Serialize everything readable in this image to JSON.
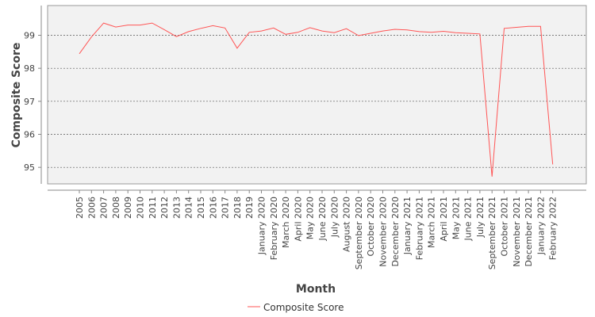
{
  "chart_data": {
    "type": "line",
    "title": "",
    "xlabel": "Month",
    "ylabel": "Composite Score",
    "ylim": [
      94.5,
      99.9
    ],
    "yticks": [
      95,
      96,
      97,
      98,
      99
    ],
    "grid": "horizontal dotted",
    "legend_position": "bottom-center",
    "categories": [
      "2005",
      "2006",
      "2007",
      "2008",
      "2009",
      "2010",
      "2011",
      "2012",
      "2013",
      "2014",
      "2015",
      "2016",
      "2017",
      "2018",
      "2019",
      "January 2020",
      "February 2020",
      "March 2020",
      "April 2020",
      "May 2020",
      "June 2020",
      "July 2020",
      "August 2020",
      "September 2020",
      "October 2020",
      "November 2020",
      "December 2020",
      "January 2021",
      "February 2021",
      "March 2021",
      "April 2021",
      "May 2021",
      "June 2021",
      "July 2021",
      "September 2021",
      "October 2021",
      "November 2021",
      "December 2021",
      "January 2022",
      "February 2022"
    ],
    "series": [
      {
        "name": "Composite Score",
        "color": "#ff5555",
        "values": [
          98.44,
          98.95,
          99.37,
          99.25,
          99.31,
          99.31,
          99.37,
          99.17,
          98.96,
          99.11,
          99.21,
          99.29,
          99.22,
          98.61,
          99.09,
          99.13,
          99.22,
          99.03,
          99.09,
          99.23,
          99.13,
          99.08,
          99.2,
          98.99,
          99.06,
          99.13,
          99.18,
          99.16,
          99.11,
          99.09,
          99.12,
          99.08,
          99.06,
          99.04,
          94.72,
          99.21,
          99.24,
          99.27,
          99.27,
          95.09
        ]
      }
    ]
  }
}
